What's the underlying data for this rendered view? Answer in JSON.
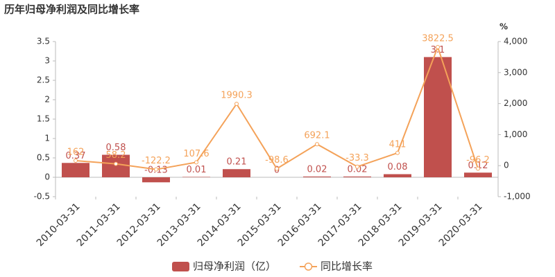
{
  "chart_data": {
    "type": "bar",
    "title": "历年归母净利润及同比增长率",
    "y2_unit_label": "%",
    "categories": [
      "2010-03-31",
      "2011-03-31",
      "2012-03-31",
      "2013-03-31",
      "2014-03-31",
      "2015-03-31",
      "2016-03-31",
      "2017-03-31",
      "2018-03-31",
      "2019-03-31",
      "2020-03-31"
    ],
    "series": [
      {
        "name": "归母净利润（亿）",
        "type": "bar",
        "color": "#c0504d",
        "values": [
          0.37,
          0.58,
          -0.13,
          0.01,
          0.21,
          0,
          0.02,
          0.02,
          0.08,
          3.1,
          0.12
        ]
      },
      {
        "name": "同比增长率",
        "type": "line",
        "axis": "y2",
        "color": "#f4a259",
        "values": [
          162,
          58.2,
          -122.2,
          107.6,
          1990.3,
          -98.6,
          692.1,
          -33.3,
          411,
          3822.5,
          -96.2
        ]
      }
    ],
    "ylim": [
      -0.5,
      3.5
    ],
    "yticks": [
      -0.5,
      0,
      0.5,
      1,
      1.5,
      2,
      2.5,
      3,
      3.5
    ],
    "y2lim": [
      -1000,
      4000
    ],
    "y2ticks": [
      {
        "value": -1000,
        "label": "-1,000"
      },
      {
        "value": 0,
        "label": "0"
      },
      {
        "value": 1000,
        "label": "1,000"
      },
      {
        "value": 2000,
        "label": "2,000"
      },
      {
        "value": 3000,
        "label": "3,000"
      },
      {
        "value": 4000,
        "label": "4,000"
      }
    ],
    "grid": false
  }
}
